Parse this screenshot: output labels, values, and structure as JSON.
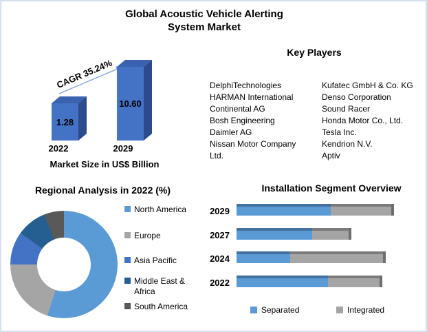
{
  "page": {
    "title_line1": "Global Acoustic Vehicle Alerting",
    "title_line2": "System Market"
  },
  "key_players": {
    "heading": "Key Players",
    "column1": [
      "DelphiTechnologies",
      "HARMAN International",
      "Continental AG",
      "Bosh Engineering",
      "Daimler AG",
      "Nissan Motor Company Ltd."
    ],
    "column2": [
      "Kufatec GmbH & Co. KG",
      "Denso Corporation",
      "Sound Racer",
      "Honda Motor Co., Ltd.",
      "Tesla Inc.",
      "Kendrion N.V.",
      "Aptiv"
    ]
  },
  "colors": {
    "bar_front": "#4472C4",
    "bar_top": "#3A62AE",
    "bar_side": "#2B4B8C",
    "arrow": "#8FAADC",
    "separated_blue": "#5B9BD5",
    "separated_blue_dark": "#41719C",
    "integrated_gray": "#A5A5A5",
    "integrated_gray_dark": "#7B7B7B",
    "bar_end_cap": "#6E6E6E",
    "page_border": "#D3E1F1"
  },
  "chart_data": [
    {
      "type": "bar",
      "title": "Market Size in US$ Billion",
      "categories": [
        "2022",
        "2029"
      ],
      "values": [
        1.28,
        10.6
      ],
      "value_labels": [
        "1.28",
        "10.60"
      ],
      "annotation": "CAGR 35.24%",
      "unit": "US$ Billion",
      "bar_color": "#4472C4"
    },
    {
      "type": "pie",
      "donut": true,
      "title": "Regional Analysis in 2022 (%)",
      "labels": [
        "North America",
        "Europe",
        "Asia Pacific",
        "Middle East & Africa",
        "South America"
      ],
      "values": [
        55,
        20,
        10,
        9,
        6
      ],
      "colors": [
        "#5B9BD5",
        "#A5A5A5",
        "#4472C4",
        "#255E91",
        "#595959"
      ],
      "legend_position": "right"
    },
    {
      "type": "bar",
      "subtype": "horizontal-stacked",
      "title": "Installation Segment Overview",
      "categories": [
        "2029",
        "2027",
        "2024",
        "2022"
      ],
      "series": [
        {
          "name": "Separated",
          "color": "#5B9BD5",
          "values": [
            61,
            48,
            34,
            58
          ]
        },
        {
          "name": "Integrated",
          "color": "#A5A5A5",
          "values": [
            39,
            23,
            59,
            33
          ]
        }
      ],
      "xlim": [
        0,
        100
      ],
      "legend_position": "bottom"
    }
  ]
}
